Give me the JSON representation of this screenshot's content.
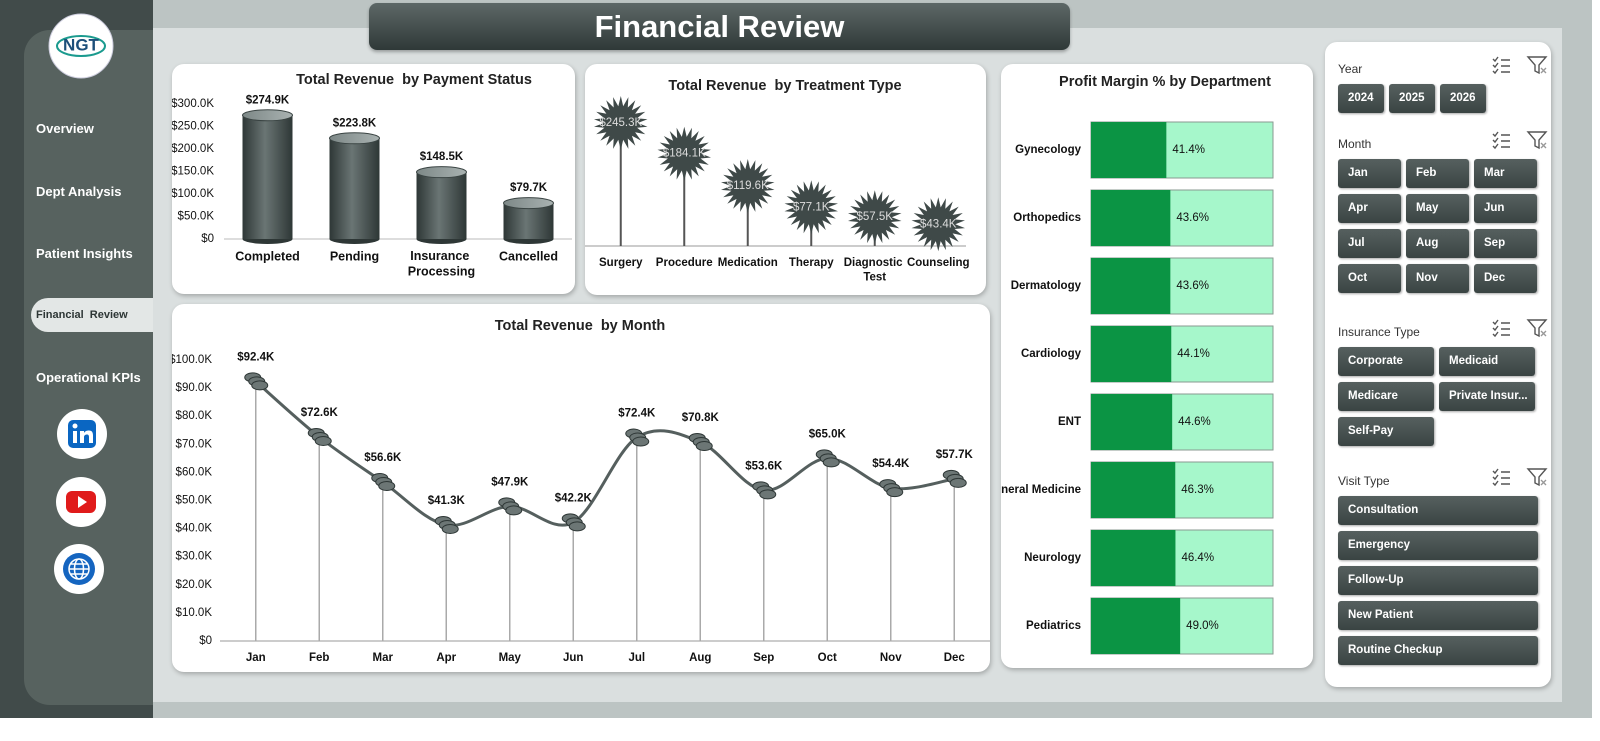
{
  "header": {
    "title": "Financial Review",
    "logo": "NGT"
  },
  "nav": [
    "Overview",
    "Dept Analysis",
    "Patient Insights",
    "Financial  Review",
    "Operational KPIs"
  ],
  "slicers": [
    {
      "title": "Year",
      "items": [
        "2024",
        "2025",
        "2026"
      ]
    },
    {
      "title": "Month",
      "items": [
        "Jan",
        "Feb",
        "Mar",
        "Apr",
        "May",
        "Jun",
        "Jul",
        "Aug",
        "Sep",
        "Oct",
        "Nov",
        "Dec"
      ]
    },
    {
      "title": "Insurance Type",
      "items": [
        "Corporate",
        "Medicaid",
        "Medicare",
        "Private Insur...",
        "Self-Pay"
      ]
    },
    {
      "title": "Visit Type",
      "items": [
        "Consultation",
        "Emergency",
        "Follow-Up",
        "New Patient",
        "Routine Checkup"
      ]
    }
  ],
  "chart_data": [
    {
      "type": "bar",
      "title": "Total Revenue  by Payment Status",
      "categories": [
        "Completed",
        "Pending",
        "Insurance Processing",
        "Cancelled"
      ],
      "values": [
        274900,
        223800,
        148500,
        79700
      ],
      "value_labels": [
        "$274.9K",
        "$223.8K",
        "$148.5K",
        "$79.7K"
      ],
      "color": "#4a5352",
      "ylim": [
        0,
        300000
      ],
      "yticks": [
        {
          "value": 0,
          "label": "$0"
        },
        {
          "value": 50000,
          "label": "$50.0K"
        },
        {
          "value": 100000,
          "label": "$100.0K"
        },
        {
          "value": 150000,
          "label": "$150.0K"
        },
        {
          "value": 200000,
          "label": "$200.0K"
        },
        {
          "value": 250000,
          "label": "$250.0K"
        },
        {
          "value": 300000,
          "label": "$300.0K"
        }
      ]
    },
    {
      "type": "lollipop",
      "title": "Total Revenue  by Treatment Type",
      "categories": [
        "Surgery",
        "Procedure",
        "Medication",
        "Therapy",
        "Diagnostic Test",
        "Counseling"
      ],
      "values": [
        245300,
        184100,
        119600,
        77100,
        57500,
        43400
      ],
      "value_labels": [
        "$245.3K",
        "$184.1K",
        "$119.6K",
        "$77.1K",
        "$57.5K",
        "$43.4K"
      ],
      "color": "#3f4948"
    },
    {
      "type": "barh",
      "title": "Profit Margin % by Department",
      "categories": [
        "Gynecology",
        "Orthopedics",
        "Dermatology",
        "Cardiology",
        "ENT",
        "General Medicine",
        "Neurology",
        "Pediatrics"
      ],
      "values": [
        41.4,
        43.6,
        43.6,
        44.1,
        44.6,
        46.3,
        46.4,
        49.0
      ],
      "value_labels": [
        "41.4%",
        "43.6%",
        "43.6%",
        "44.1%",
        "44.6%",
        "46.3%",
        "46.4%",
        "49.0%"
      ],
      "xlim": [
        0,
        100
      ],
      "color": "#0b9444",
      "track_color": "#a6f7cb"
    },
    {
      "type": "line",
      "title": "Total Revenue  by Month",
      "categories": [
        "Jan",
        "Feb",
        "Mar",
        "Apr",
        "May",
        "Jun",
        "Jul",
        "Aug",
        "Sep",
        "Oct",
        "Nov",
        "Dec"
      ],
      "values": [
        92400,
        72600,
        56600,
        41300,
        47900,
        42200,
        72400,
        70800,
        53600,
        65000,
        54400,
        57700
      ],
      "value_labels": [
        "$92.4K",
        "$72.6K",
        "$56.6K",
        "$41.3K",
        "$47.9K",
        "$42.2K",
        "$72.4K",
        "$70.8K",
        "$53.6K",
        "$65.0K",
        "$54.4K",
        "$57.7K"
      ],
      "color": "#555f5e",
      "ylim": [
        0,
        100000
      ],
      "yticks": [
        {
          "value": 0,
          "label": "$0"
        },
        {
          "value": 10000,
          "label": "$10.0K"
        },
        {
          "value": 20000,
          "label": "$20.0K"
        },
        {
          "value": 30000,
          "label": "$30.0K"
        },
        {
          "value": 40000,
          "label": "$40.0K"
        },
        {
          "value": 50000,
          "label": "$50.0K"
        },
        {
          "value": 60000,
          "label": "$60.0K"
        },
        {
          "value": 70000,
          "label": "$70.0K"
        },
        {
          "value": 80000,
          "label": "$80.0K"
        },
        {
          "value": 90000,
          "label": "$90.0K"
        },
        {
          "value": 100000,
          "label": "$100.0K"
        }
      ]
    }
  ]
}
